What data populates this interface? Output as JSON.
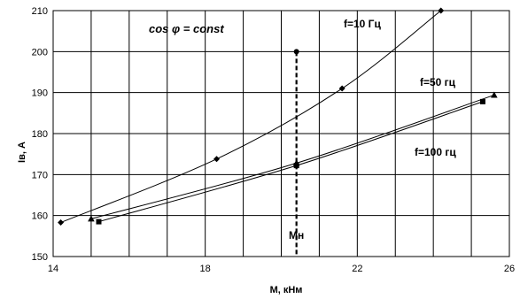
{
  "chart_data": {
    "type": "line",
    "title": "",
    "xlabel": "M, кНм",
    "ylabel": "Iв, А",
    "xlim": [
      14,
      26
    ],
    "ylim": [
      150,
      210
    ],
    "xticks": [
      14,
      18,
      22,
      26
    ],
    "yticks": [
      150,
      160,
      170,
      180,
      190,
      200,
      210
    ],
    "x_gridlines": [
      14,
      15,
      16,
      17,
      18,
      19,
      20,
      21,
      22,
      23,
      24,
      25,
      26
    ],
    "y_gridlines": [
      150,
      160,
      170,
      180,
      190,
      200,
      210
    ],
    "grid": true,
    "legend": "none",
    "series": [
      {
        "name": "f=10 Гц",
        "marker": "diamond",
        "x": [
          14.2,
          18.3,
          21.6,
          24.2
        ],
        "y": [
          158.3,
          173.8,
          191.0,
          210.0
        ]
      },
      {
        "name": "f=50 гц",
        "marker": "triangle",
        "x": [
          15.0,
          20.4,
          25.6
        ],
        "y": [
          159.2,
          172.8,
          189.4
        ]
      },
      {
        "name": "f=100 гц",
        "marker": "square",
        "x": [
          15.2,
          20.4,
          25.3
        ],
        "y": [
          158.5,
          172.2,
          187.8
        ]
      }
    ],
    "reference_line": {
      "label": "Мн",
      "x": 20.4,
      "y_range": [
        150,
        200
      ],
      "style": "dashed"
    },
    "annotations": {
      "condition": "cos φ = const",
      "f10_label": "f=10 Гц",
      "f50_label": "f=50 гц",
      "f100_label": "f=100 гц",
      "mn_label": "Мн"
    }
  }
}
